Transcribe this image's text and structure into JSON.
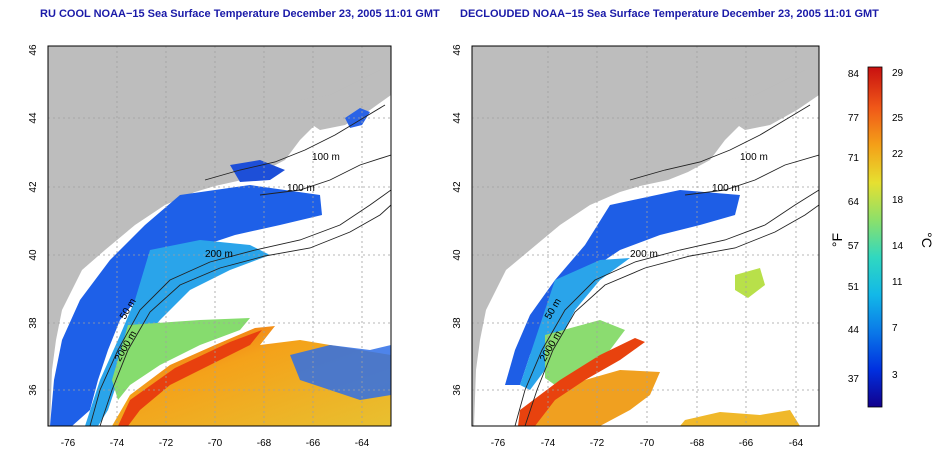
{
  "panels": [
    {
      "title": "RU COOL NOAA−15 Sea Surface Temperature December 23, 2005 11:01 GMT",
      "contour_labels": [
        "100 m",
        "100 m",
        "200 m",
        "50 m",
        "2000 m"
      ],
      "x_ticks": [
        "-76",
        "-74",
        "-72",
        "-70",
        "-68",
        "-66",
        "-64"
      ],
      "y_ticks": [
        "36",
        "38",
        "40",
        "42",
        "44",
        "46"
      ]
    },
    {
      "title": "DECLOUDED NOAA−15 Sea Surface Temperature December 23, 2005 11:01 GMT",
      "contour_labels": [
        "100 m",
        "100 m",
        "200 m",
        "50 m",
        "2000 m"
      ],
      "x_ticks": [
        "-76",
        "-74",
        "-72",
        "-70",
        "-68",
        "-66",
        "-64"
      ],
      "y_ticks": [
        "36",
        "38",
        "40",
        "42",
        "44",
        "46"
      ]
    }
  ],
  "colorbar": {
    "f_ticks": [
      "84",
      "77",
      "71",
      "64",
      "57",
      "51",
      "44",
      "37"
    ],
    "c_ticks": [
      "29",
      "25",
      "22",
      "18",
      "14",
      "11",
      "7",
      "3"
    ],
    "f_label": "°F",
    "c_label": "°C",
    "gradient": [
      "#12008c",
      "#0030e0",
      "#0a78e8",
      "#12b8e8",
      "#30d8c0",
      "#8ce06a",
      "#e6e030",
      "#f4a018",
      "#f05818",
      "#c81010"
    ]
  },
  "colors": {
    "land": "#bdbdbd",
    "title": "#1a1aa8"
  }
}
